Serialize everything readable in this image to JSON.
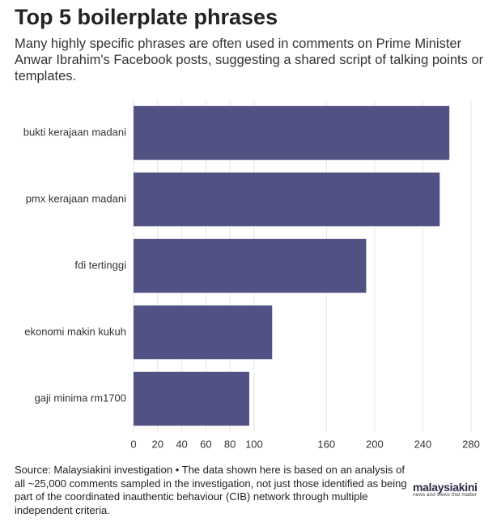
{
  "chart_data": {
    "type": "bar",
    "orientation": "horizontal",
    "title": "Top 5 boilerplate phrases",
    "subtitle": "Many highly specific phrases are often used in comments on Prime Minister Anwar Ibrahim's Facebook posts, suggesting a shared script of talking points or templates.",
    "categories": [
      "bukti kerajaan madani",
      "pmx kerajaan madani",
      "fdi tertinggi",
      "ekonomi makin kukuh",
      "gaji minima rm1700"
    ],
    "values": [
      262,
      254,
      193,
      115,
      96
    ],
    "color": "#515183",
    "xlim": [
      0,
      280
    ],
    "xticks": [
      0,
      20,
      40,
      60,
      80,
      100,
      160,
      200,
      240,
      280
    ],
    "grid": true,
    "source": "Source: Malaysiakini investigation • The data shown here is based on an analysis of all ~25,000 comments sampled in the investigation, not just those identified as being part of the coordinated inauthentic behaviour (CIB) network through multiple independent criteria."
  },
  "logo": {
    "name": "malaysiakini",
    "tagline": "news and views that matter"
  }
}
